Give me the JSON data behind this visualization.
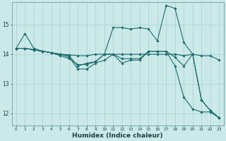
{
  "xlabel": "Humidex (Indice chaleur)",
  "ylabel": "",
  "background_color": "#cce9e9",
  "line_color": "#1a6b6b",
  "xlim": [
    -0.5,
    23.5
  ],
  "ylim": [
    11.6,
    15.75
  ],
  "yticks": [
    12,
    13,
    14,
    15
  ],
  "xticks": [
    0,
    1,
    2,
    3,
    4,
    5,
    6,
    7,
    8,
    9,
    10,
    11,
    12,
    13,
    14,
    15,
    16,
    17,
    18,
    19,
    20,
    21,
    22,
    23
  ],
  "series": [
    [
      14.2,
      14.7,
      14.2,
      14.1,
      14.05,
      13.95,
      13.85,
      13.65,
      13.65,
      13.75,
      14.0,
      14.9,
      14.9,
      14.85,
      14.9,
      14.85,
      14.45,
      15.65,
      15.55,
      14.4,
      14.0,
      12.45,
      12.1,
      11.85
    ],
    [
      14.2,
      14.2,
      14.15,
      14.1,
      14.05,
      14.0,
      13.95,
      13.6,
      13.7,
      13.75,
      14.0,
      14.0,
      13.85,
      13.85,
      13.85,
      14.1,
      14.1,
      14.1,
      13.9,
      13.6,
      14.0,
      12.45,
      12.1,
      11.85
    ],
    [
      14.2,
      14.2,
      14.15,
      14.1,
      14.05,
      14.0,
      13.98,
      13.95,
      13.95,
      14.0,
      14.0,
      14.0,
      14.0,
      14.0,
      14.0,
      14.0,
      14.0,
      14.0,
      14.0,
      13.95,
      14.0,
      13.95,
      13.95,
      13.8
    ],
    [
      14.2,
      14.2,
      14.15,
      14.1,
      14.05,
      14.0,
      13.9,
      13.5,
      13.5,
      13.7,
      13.8,
      14.0,
      13.7,
      13.8,
      13.8,
      14.1,
      14.1,
      14.1,
      13.6,
      12.55,
      12.15,
      12.05,
      12.05,
      11.85
    ]
  ]
}
